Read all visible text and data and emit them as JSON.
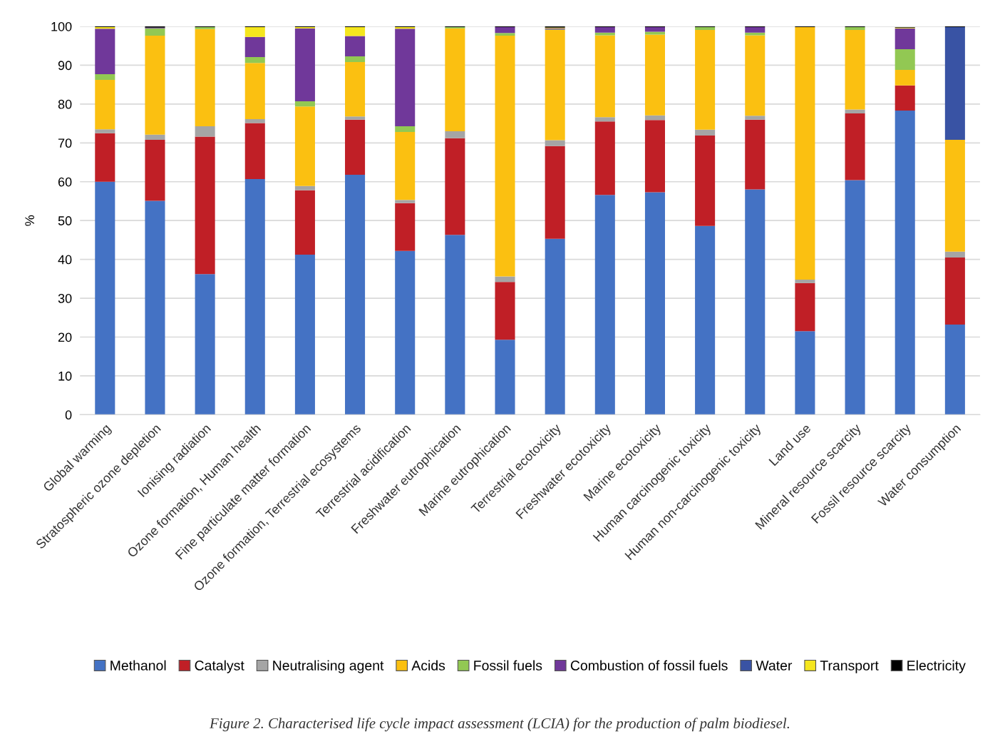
{
  "chart_data": {
    "type": "bar",
    "stacked": true,
    "ylabel": "%",
    "categories": [
      "Global warming",
      "Stratospheric ozone depletion",
      "Ionising radiation",
      "Ozone formation, Human health",
      "Fine particulate matter formation",
      "Ozone formation, Terrestrial ecosystems",
      "Terrestrial acidification",
      "Freshwater eutrophication",
      "Marine eutrophication",
      "Terrestrial ecotoxicity",
      "Freshwater ecotoxicity",
      "Marine ecotoxicity",
      "Human carcinogenic toxicity",
      "Human non-carcinogenic toxicity",
      "Land use",
      "Mineral resource scarcity",
      "Fossil resource scarcity",
      "Water consumption"
    ],
    "series": [
      {
        "name": "Methanol",
        "color": "#4472c4",
        "values": [
          60.0,
          55.1,
          36.2,
          60.7,
          41.2,
          61.8,
          42.2,
          46.3,
          19.3,
          45.3,
          56.6,
          57.3,
          48.6,
          58.0,
          21.5,
          60.4,
          78.3,
          23.2
        ]
      },
      {
        "name": "Catalyst",
        "color": "#c01f26",
        "values": [
          12.5,
          15.7,
          35.4,
          14.4,
          16.6,
          14.2,
          12.3,
          24.9,
          14.9,
          23.9,
          18.9,
          18.6,
          23.3,
          18.0,
          12.4,
          17.2,
          6.5,
          17.3
        ]
      },
      {
        "name": "Neutralising agent",
        "color": "#a5a5a5",
        "values": [
          1.0,
          1.3,
          2.7,
          1.0,
          1.1,
          0.8,
          0.8,
          1.8,
          1.4,
          1.5,
          1.1,
          1.2,
          1.5,
          1.0,
          0.9,
          1.0,
          null,
          1.5
        ]
      },
      {
        "name": "Acids",
        "color": "#fbc011",
        "values": [
          12.7,
          25.5,
          25.0,
          14.5,
          20.5,
          14.0,
          17.5,
          26.5,
          62.0,
          28.4,
          21.1,
          20.8,
          25.7,
          20.7,
          65.0,
          20.5,
          4.0,
          28.8
        ]
      },
      {
        "name": "Fossil fuels",
        "color": "#92c853",
        "values": [
          1.5,
          1.9,
          0.5,
          1.5,
          1.3,
          1.5,
          1.5,
          0.3,
          0.7,
          0.1,
          0.7,
          0.7,
          0.7,
          0.7,
          0.0,
          0.7,
          5.3,
          0.0
        ]
      },
      {
        "name": "Combustion of fossil fuels",
        "color": "#70389a",
        "values": [
          11.7,
          0.2,
          0.0,
          5.2,
          18.8,
          5.2,
          25.1,
          0.0,
          1.5,
          0.3,
          1.4,
          1.2,
          0.0,
          1.4,
          0.0,
          0.0,
          5.4,
          0.0
        ]
      },
      {
        "name": "Water",
        "color": "#3953a4",
        "values": [
          0.0,
          0.0,
          0.0,
          0.0,
          0.0,
          0.0,
          0.0,
          0.0,
          0.0,
          0.0,
          0.0,
          0.0,
          0.0,
          0.0,
          0.0,
          0.0,
          0.0,
          29.0
        ]
      },
      {
        "name": "Transport",
        "color": "#f5e61e",
        "values": [
          0.4,
          0.0,
          0.0,
          2.5,
          0.3,
          2.3,
          0.4,
          0.0,
          0.0,
          0.2,
          0.0,
          0.0,
          0.0,
          0.0,
          0.0,
          0.0,
          0.2,
          0.0
        ]
      },
      {
        "name": "Electricity",
        "color": "#000000",
        "values": [
          0.2,
          0.3,
          0.2,
          0.2,
          0.2,
          0.2,
          0.2,
          0.2,
          0.2,
          0.3,
          0.2,
          0.2,
          0.2,
          0.2,
          0.2,
          0.2,
          0.1,
          0.2
        ]
      }
    ],
    "ylim": [
      0,
      100
    ],
    "yticks": [
      0,
      10,
      20,
      30,
      40,
      50,
      60,
      70,
      80,
      90,
      100
    ],
    "grid": "y",
    "legend": "bottom",
    "annotations": [
      "Figure 2. Characterised life cycle impact assessment (LCIA) for the production of palm biodiesel."
    ]
  }
}
